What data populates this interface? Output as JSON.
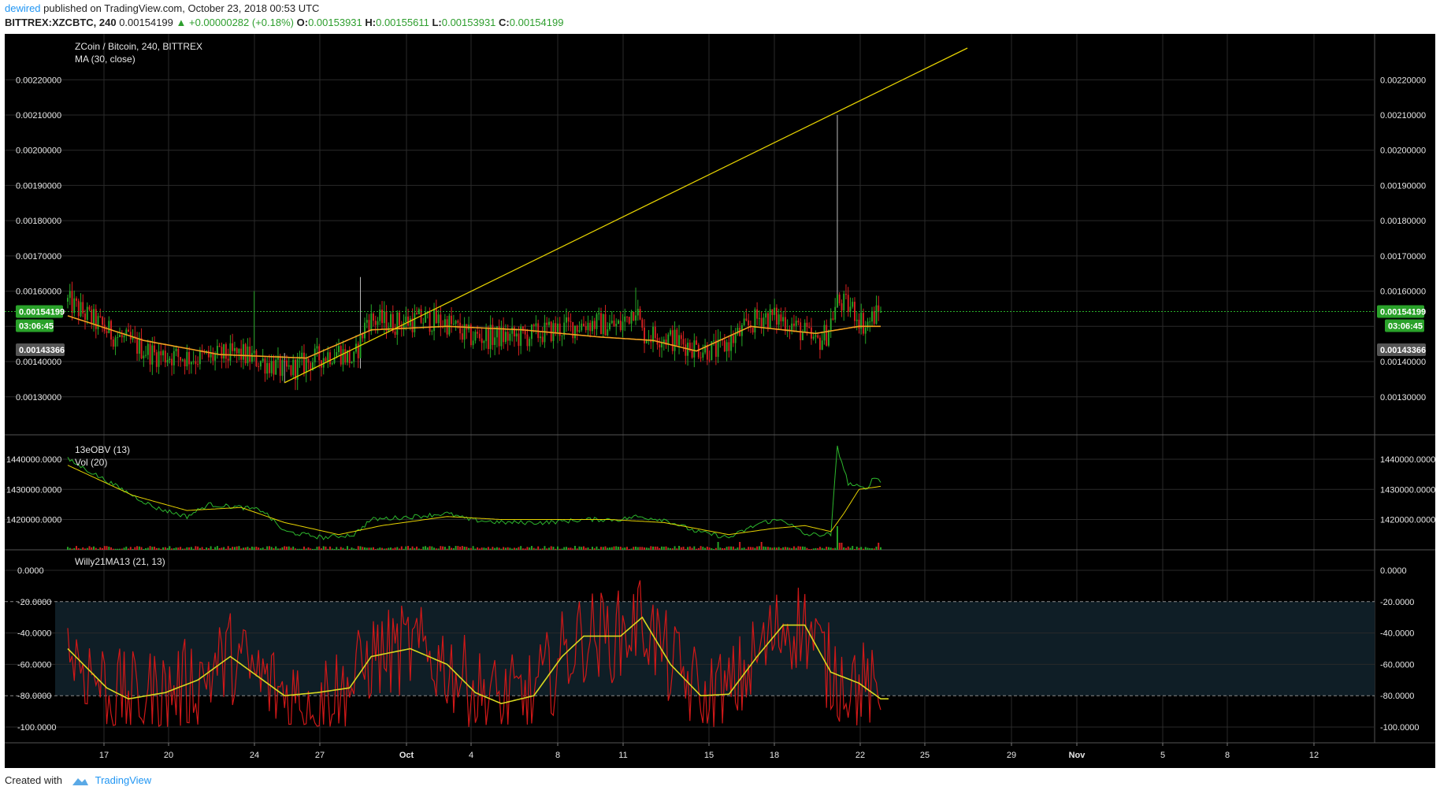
{
  "header": {
    "author": "dewired",
    "published": "published on TradingView.com, October 23, 2018 00:53 UTC",
    "symbol": "BITTREX:XZCBTC, 240",
    "last": "0.00154199",
    "change": "▲ +0.00000282 (+0.18%)",
    "o_label": "O:",
    "o_value": "0.00153931",
    "h_label": "H:",
    "h_value": "0.00155611",
    "l_label": "L:",
    "l_value": "0.00153931",
    "c_label": "C:",
    "c_value": "0.00154199"
  },
  "footer": {
    "created_with": "Created with",
    "brand": "TradingView"
  },
  "colors": {
    "background": "#000000",
    "grid": "#2a2a2a",
    "up": "#26a626",
    "down": "#d42020",
    "ma": "#f0a020",
    "trendline": "#e6d200",
    "obv": "#2db82d",
    "willy": "#d01818",
    "willy_ma": "#d8d820"
  },
  "chart_data": [
    {
      "type": "candlestick",
      "title": "ZCoin / Bitcoin, 240, BITTREX",
      "indicator": "MA (30, close)",
      "y_ticks": [
        "0.00220000",
        "0.00210000",
        "0.00200000",
        "0.00190000",
        "0.00180000",
        "0.00170000",
        "0.00160000",
        "0.00140000",
        "0.00130000"
      ],
      "ylim": [
        0.00121,
        0.00229
      ],
      "x_ticks": [
        "17",
        "20",
        "24",
        "27",
        "Oct",
        "4",
        "8",
        "11",
        "15",
        "18",
        "22",
        "25",
        "29",
        "Nov",
        "5",
        "8",
        "12"
      ],
      "last_price": "0.00154199",
      "countdown": "03:06:45",
      "level_label": "0.00143366",
      "ohlc_summary": {
        "start": 0.00157,
        "low": 0.00134,
        "high": 0.0021,
        "end": 0.00154199
      },
      "ma_anchors": [
        [
          0,
          0.00153
        ],
        [
          35,
          0.00146
        ],
        [
          70,
          0.00142
        ],
        [
          110,
          0.00141
        ],
        [
          140,
          0.00149
        ],
        [
          175,
          0.0015
        ],
        [
          210,
          0.00149
        ],
        [
          245,
          0.00147
        ],
        [
          270,
          0.00146
        ],
        [
          290,
          0.00143
        ],
        [
          315,
          0.0015
        ],
        [
          345,
          0.00148
        ],
        [
          365,
          0.0015
        ],
        [
          375,
          0.0015
        ]
      ],
      "trendline": {
        "from": [
          100,
          0.00134
        ],
        "to": [
          415,
          0.00229
        ]
      }
    },
    {
      "type": "line",
      "title": "13eOBV (13)",
      "title2": "Vol (20)",
      "y_ticks": [
        "1440000.0000",
        "1430000.0000",
        "1420000.0000"
      ],
      "ylim": [
        1411000,
        1446000
      ]
    },
    {
      "type": "line",
      "title": "Willy21MA13 (21, 13)",
      "y_ticks": [
        "0.0000",
        "-20.0000",
        "-40.0000",
        "-60.0000",
        "-80.0000",
        "-100.0000"
      ],
      "ylim": [
        -106,
        4
      ],
      "band": [
        -80,
        -20
      ],
      "willy_ma_anchors": [
        [
          0,
          -50
        ],
        [
          18,
          -75
        ],
        [
          28,
          -82
        ],
        [
          45,
          -78
        ],
        [
          60,
          -70
        ],
        [
          75,
          -55
        ],
        [
          88,
          -68
        ],
        [
          100,
          -80
        ],
        [
          115,
          -78
        ],
        [
          130,
          -75
        ],
        [
          140,
          -55
        ],
        [
          158,
          -50
        ],
        [
          175,
          -60
        ],
        [
          188,
          -78
        ],
        [
          200,
          -85
        ],
        [
          215,
          -80
        ],
        [
          228,
          -55
        ],
        [
          238,
          -42
        ],
        [
          255,
          -42
        ],
        [
          265,
          -30
        ],
        [
          278,
          -60
        ],
        [
          292,
          -80
        ],
        [
          305,
          -79
        ],
        [
          318,
          -55
        ],
        [
          330,
          -35
        ],
        [
          340,
          -35
        ],
        [
          352,
          -65
        ],
        [
          365,
          -72
        ],
        [
          375,
          -82
        ]
      ]
    }
  ]
}
